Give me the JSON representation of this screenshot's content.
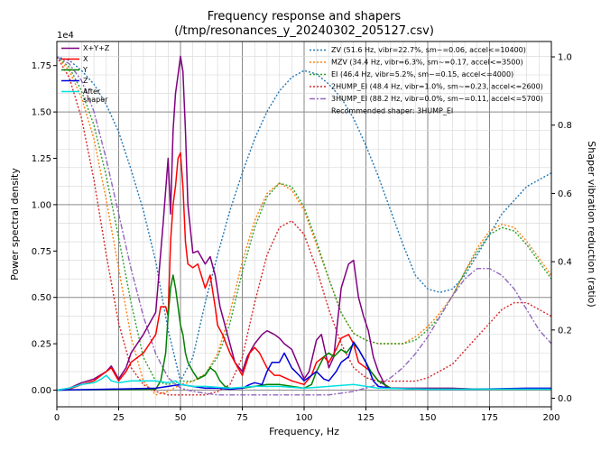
{
  "chart_data": {
    "type": "line",
    "title": "Frequency response and shapers",
    "subtitle": "(/tmp/resonances_y_20240302_205127.csv)",
    "xlabel": "Frequency, Hz",
    "ylabel": "Power spectral density",
    "y2label": "Shaper vibration reduction (ratio)",
    "y_multiplier": "1e4",
    "xlim": [
      0,
      200
    ],
    "ylim": [
      -0.09,
      1.88
    ],
    "y2lim": [
      -0.025,
      1.045
    ],
    "x_ticks": [
      "0",
      "25",
      "50",
      "75",
      "100",
      "125",
      "150",
      "175",
      "200"
    ],
    "y_ticks": [
      "0.00",
      "0.25",
      "0.50",
      "0.75",
      "1.00",
      "1.25",
      "1.50",
      "1.75"
    ],
    "y2_ticks": [
      "0.0",
      "0.2",
      "0.4",
      "0.6",
      "0.8",
      "1.0"
    ],
    "grid": true,
    "legend_left_position": "top-left",
    "legend_right_position": "top-right",
    "recommended": "Recommended shaper: 3HUMP_EI",
    "psd_series": [
      {
        "name": "X+Y+Z",
        "color": "#800080",
        "x": [
          0,
          5,
          10,
          15,
          20,
          22,
          25,
          28,
          30,
          35,
          40,
          43,
          45,
          46,
          47,
          48,
          49,
          50,
          51,
          52,
          53,
          55,
          57,
          60,
          62,
          64,
          66,
          68,
          70,
          72,
          75,
          77,
          80,
          83,
          85,
          88,
          90,
          92,
          95,
          100,
          102,
          105,
          107,
          110,
          112,
          115,
          118,
          120,
          122,
          124,
          126,
          128,
          130,
          133,
          135,
          140,
          150,
          160,
          170,
          180,
          190,
          200
        ],
        "y": [
          0,
          0.01,
          0.04,
          0.06,
          0.1,
          0.13,
          0.06,
          0.12,
          0.2,
          0.3,
          0.42,
          0.9,
          1.25,
          0.95,
          1.4,
          1.6,
          1.7,
          1.8,
          1.72,
          1.4,
          1.0,
          0.74,
          0.75,
          0.68,
          0.72,
          0.62,
          0.45,
          0.35,
          0.25,
          0.15,
          0.1,
          0.18,
          0.25,
          0.3,
          0.32,
          0.3,
          0.28,
          0.25,
          0.22,
          0.06,
          0.1,
          0.27,
          0.3,
          0.12,
          0.18,
          0.55,
          0.68,
          0.7,
          0.5,
          0.4,
          0.32,
          0.18,
          0.1,
          0.02,
          0.01,
          0.01,
          0.01,
          0.01,
          0.005,
          0.005,
          0.005,
          0.005
        ]
      },
      {
        "name": "X",
        "color": "#ff0000",
        "x": [
          0,
          5,
          10,
          15,
          20,
          22,
          25,
          28,
          30,
          35,
          40,
          42,
          44,
          45,
          46,
          47,
          48,
          49,
          50,
          51,
          52,
          53,
          55,
          57,
          60,
          62,
          64,
          65,
          67,
          70,
          72,
          75,
          78,
          80,
          82,
          85,
          88,
          90,
          95,
          100,
          103,
          105,
          108,
          110,
          113,
          115,
          118,
          120,
          122,
          125,
          127,
          130,
          135,
          150,
          170,
          200
        ],
        "y": [
          0,
          0.005,
          0.03,
          0.05,
          0.1,
          0.12,
          0.05,
          0.1,
          0.15,
          0.2,
          0.3,
          0.45,
          0.45,
          0.4,
          0.8,
          1.0,
          1.1,
          1.25,
          1.28,
          1.1,
          0.8,
          0.68,
          0.66,
          0.68,
          0.55,
          0.62,
          0.45,
          0.35,
          0.3,
          0.2,
          0.15,
          0.08,
          0.2,
          0.23,
          0.2,
          0.12,
          0.08,
          0.08,
          0.05,
          0.03,
          0.08,
          0.15,
          0.18,
          0.15,
          0.22,
          0.28,
          0.3,
          0.25,
          0.15,
          0.12,
          0.1,
          0.05,
          0.01,
          0.005,
          0.005,
          0.005
        ]
      },
      {
        "name": "Y",
        "color": "#008000",
        "x": [
          0,
          40,
          42,
          44,
          45,
          46,
          47,
          48,
          49,
          50,
          51,
          52,
          53,
          55,
          57,
          60,
          62,
          64,
          66,
          68,
          70,
          75,
          80,
          85,
          90,
          95,
          100,
          103,
          105,
          108,
          110,
          112,
          115,
          117,
          120,
          122,
          125,
          127,
          130,
          135,
          150,
          200
        ],
        "y": [
          0,
          0.005,
          0.05,
          0.2,
          0.4,
          0.55,
          0.62,
          0.55,
          0.45,
          0.35,
          0.3,
          0.2,
          0.15,
          0.1,
          0.06,
          0.08,
          0.12,
          0.1,
          0.05,
          0.02,
          0.01,
          0.01,
          0.02,
          0.03,
          0.03,
          0.02,
          0.01,
          0.03,
          0.1,
          0.18,
          0.2,
          0.18,
          0.22,
          0.2,
          0.25,
          0.22,
          0.15,
          0.1,
          0.05,
          0.01,
          0.005,
          0.005
        ]
      },
      {
        "name": "Z",
        "color": "#0000dd",
        "x": [
          0,
          20,
          40,
          45,
          50,
          55,
          60,
          65,
          70,
          75,
          78,
          80,
          83,
          85,
          87,
          90,
          92,
          95,
          98,
          100,
          103,
          105,
          108,
          110,
          113,
          115,
          118,
          120,
          122,
          125,
          128,
          130,
          135,
          150,
          170,
          190,
          200
        ],
        "y": [
          0,
          0.005,
          0.01,
          0.02,
          0.03,
          0.02,
          0.01,
          0.01,
          0.005,
          0.01,
          0.03,
          0.04,
          0.03,
          0.1,
          0.15,
          0.15,
          0.2,
          0.12,
          0.08,
          0.05,
          0.08,
          0.1,
          0.06,
          0.05,
          0.1,
          0.15,
          0.18,
          0.26,
          0.22,
          0.15,
          0.05,
          0.02,
          0.01,
          0.005,
          0.005,
          0.01,
          0.01
        ]
      },
      {
        "name": "After\nshaper",
        "color": "#00e0e0",
        "x": [
          0,
          5,
          10,
          15,
          18,
          20,
          22,
          25,
          30,
          35,
          40,
          45,
          48,
          50,
          55,
          60,
          70,
          80,
          90,
          100,
          110,
          120,
          130,
          150,
          200
        ],
        "y": [
          0,
          0.01,
          0.03,
          0.04,
          0.06,
          0.08,
          0.05,
          0.04,
          0.05,
          0.05,
          0.05,
          0.04,
          0.05,
          0.03,
          0.02,
          0.02,
          0.01,
          0.02,
          0.02,
          0.01,
          0.02,
          0.03,
          0.01,
          0.005,
          0.005
        ]
      }
    ],
    "shaper_series": [
      {
        "name": "ZV (51.6 Hz, vibr=22.7%, sm~=0.06, accel<=10400)",
        "color": "#1f77b4",
        "dash": "2,2",
        "x": [
          0,
          5,
          10,
          15,
          20,
          25,
          30,
          35,
          40,
          45,
          50,
          55,
          60,
          65,
          70,
          75,
          80,
          85,
          90,
          95,
          100,
          105,
          110,
          115,
          120,
          125,
          130,
          135,
          140,
          145,
          150,
          155,
          160,
          165,
          170,
          175,
          180,
          185,
          190,
          195,
          200
        ],
        "y": [
          1.0,
          0.99,
          0.96,
          0.92,
          0.86,
          0.78,
          0.67,
          0.55,
          0.4,
          0.2,
          0.05,
          0.12,
          0.28,
          0.42,
          0.55,
          0.66,
          0.76,
          0.84,
          0.9,
          0.94,
          0.96,
          0.95,
          0.92,
          0.88,
          0.82,
          0.74,
          0.65,
          0.55,
          0.45,
          0.36,
          0.32,
          0.31,
          0.32,
          0.36,
          0.42,
          0.48,
          0.54,
          0.58,
          0.62,
          0.64,
          0.66
        ]
      },
      {
        "name": "MZV (34.4 Hz, vibr=6.3%, sm~=0.17, accel<=3500)",
        "color": "#ff7f0e",
        "dash": "2,2",
        "x": [
          0,
          5,
          10,
          15,
          20,
          25,
          30,
          35,
          40,
          45,
          50,
          55,
          60,
          65,
          70,
          75,
          80,
          85,
          90,
          95,
          100,
          105,
          110,
          115,
          120,
          125,
          130,
          135,
          140,
          145,
          150,
          155,
          160,
          165,
          170,
          175,
          180,
          185,
          190,
          195,
          200
        ],
        "y": [
          1.0,
          0.96,
          0.88,
          0.76,
          0.58,
          0.38,
          0.18,
          0.05,
          0.01,
          0.02,
          0.04,
          0.05,
          0.07,
          0.13,
          0.25,
          0.4,
          0.52,
          0.6,
          0.63,
          0.61,
          0.55,
          0.45,
          0.35,
          0.25,
          0.19,
          0.17,
          0.16,
          0.16,
          0.16,
          0.18,
          0.21,
          0.25,
          0.3,
          0.37,
          0.44,
          0.49,
          0.51,
          0.5,
          0.46,
          0.41,
          0.36
        ]
      },
      {
        "name": "EI (46.4 Hz, vibr=5.2%, sm~=0.15, accel<=4000)",
        "color": "#2ca02c",
        "dash": "2,2",
        "x": [
          0,
          5,
          10,
          15,
          20,
          25,
          30,
          35,
          40,
          45,
          50,
          55,
          60,
          65,
          70,
          75,
          80,
          85,
          90,
          95,
          100,
          105,
          110,
          115,
          120,
          125,
          130,
          135,
          140,
          145,
          150,
          155,
          160,
          165,
          170,
          175,
          180,
          185,
          190,
          195,
          200
        ],
        "y": [
          1.0,
          0.97,
          0.9,
          0.8,
          0.65,
          0.47,
          0.28,
          0.12,
          0.05,
          0.04,
          0.05,
          0.05,
          0.07,
          0.12,
          0.22,
          0.37,
          0.5,
          0.59,
          0.63,
          0.62,
          0.56,
          0.46,
          0.35,
          0.25,
          0.19,
          0.17,
          0.16,
          0.16,
          0.16,
          0.17,
          0.2,
          0.24,
          0.3,
          0.37,
          0.43,
          0.48,
          0.5,
          0.49,
          0.45,
          0.4,
          0.35
        ]
      },
      {
        "name": "2HUMP_EI (48.4 Hz, vibr=1.0%, sm~=0.23, accel<=2600)",
        "color": "#d62728",
        "dash": "2,2",
        "x": [
          0,
          5,
          10,
          15,
          20,
          25,
          30,
          35,
          40,
          45,
          50,
          55,
          60,
          65,
          70,
          75,
          80,
          85,
          90,
          95,
          100,
          105,
          110,
          115,
          120,
          125,
          130,
          135,
          140,
          145,
          150,
          155,
          160,
          165,
          170,
          175,
          180,
          185,
          190,
          195,
          200
        ],
        "y": [
          1.0,
          0.94,
          0.82,
          0.64,
          0.42,
          0.22,
          0.09,
          0.04,
          0.02,
          0.01,
          0.01,
          0.01,
          0.01,
          0.02,
          0.04,
          0.12,
          0.28,
          0.42,
          0.5,
          0.52,
          0.48,
          0.38,
          0.26,
          0.16,
          0.09,
          0.06,
          0.05,
          0.05,
          0.05,
          0.05,
          0.06,
          0.08,
          0.1,
          0.14,
          0.18,
          0.22,
          0.26,
          0.28,
          0.28,
          0.26,
          0.24
        ]
      },
      {
        "name": "3HUMP_EI (88.2 Hz, vibr=0.0%, sm~=0.11, accel<=5700)",
        "color": "#9467bd",
        "dash": "6,2,2,2",
        "x": [
          0,
          5,
          10,
          15,
          20,
          25,
          30,
          35,
          40,
          45,
          50,
          55,
          60,
          65,
          70,
          75,
          80,
          85,
          90,
          95,
          100,
          105,
          110,
          115,
          120,
          125,
          130,
          135,
          140,
          145,
          150,
          155,
          160,
          165,
          170,
          175,
          180,
          185,
          190,
          195,
          200
        ],
        "y": [
          1.0,
          0.98,
          0.93,
          0.84,
          0.7,
          0.54,
          0.38,
          0.24,
          0.13,
          0.06,
          0.03,
          0.02,
          0.015,
          0.01,
          0.01,
          0.01,
          0.01,
          0.01,
          0.01,
          0.01,
          0.01,
          0.01,
          0.01,
          0.015,
          0.02,
          0.03,
          0.04,
          0.06,
          0.09,
          0.13,
          0.18,
          0.24,
          0.3,
          0.35,
          0.38,
          0.38,
          0.36,
          0.32,
          0.26,
          0.2,
          0.16
        ]
      }
    ]
  }
}
